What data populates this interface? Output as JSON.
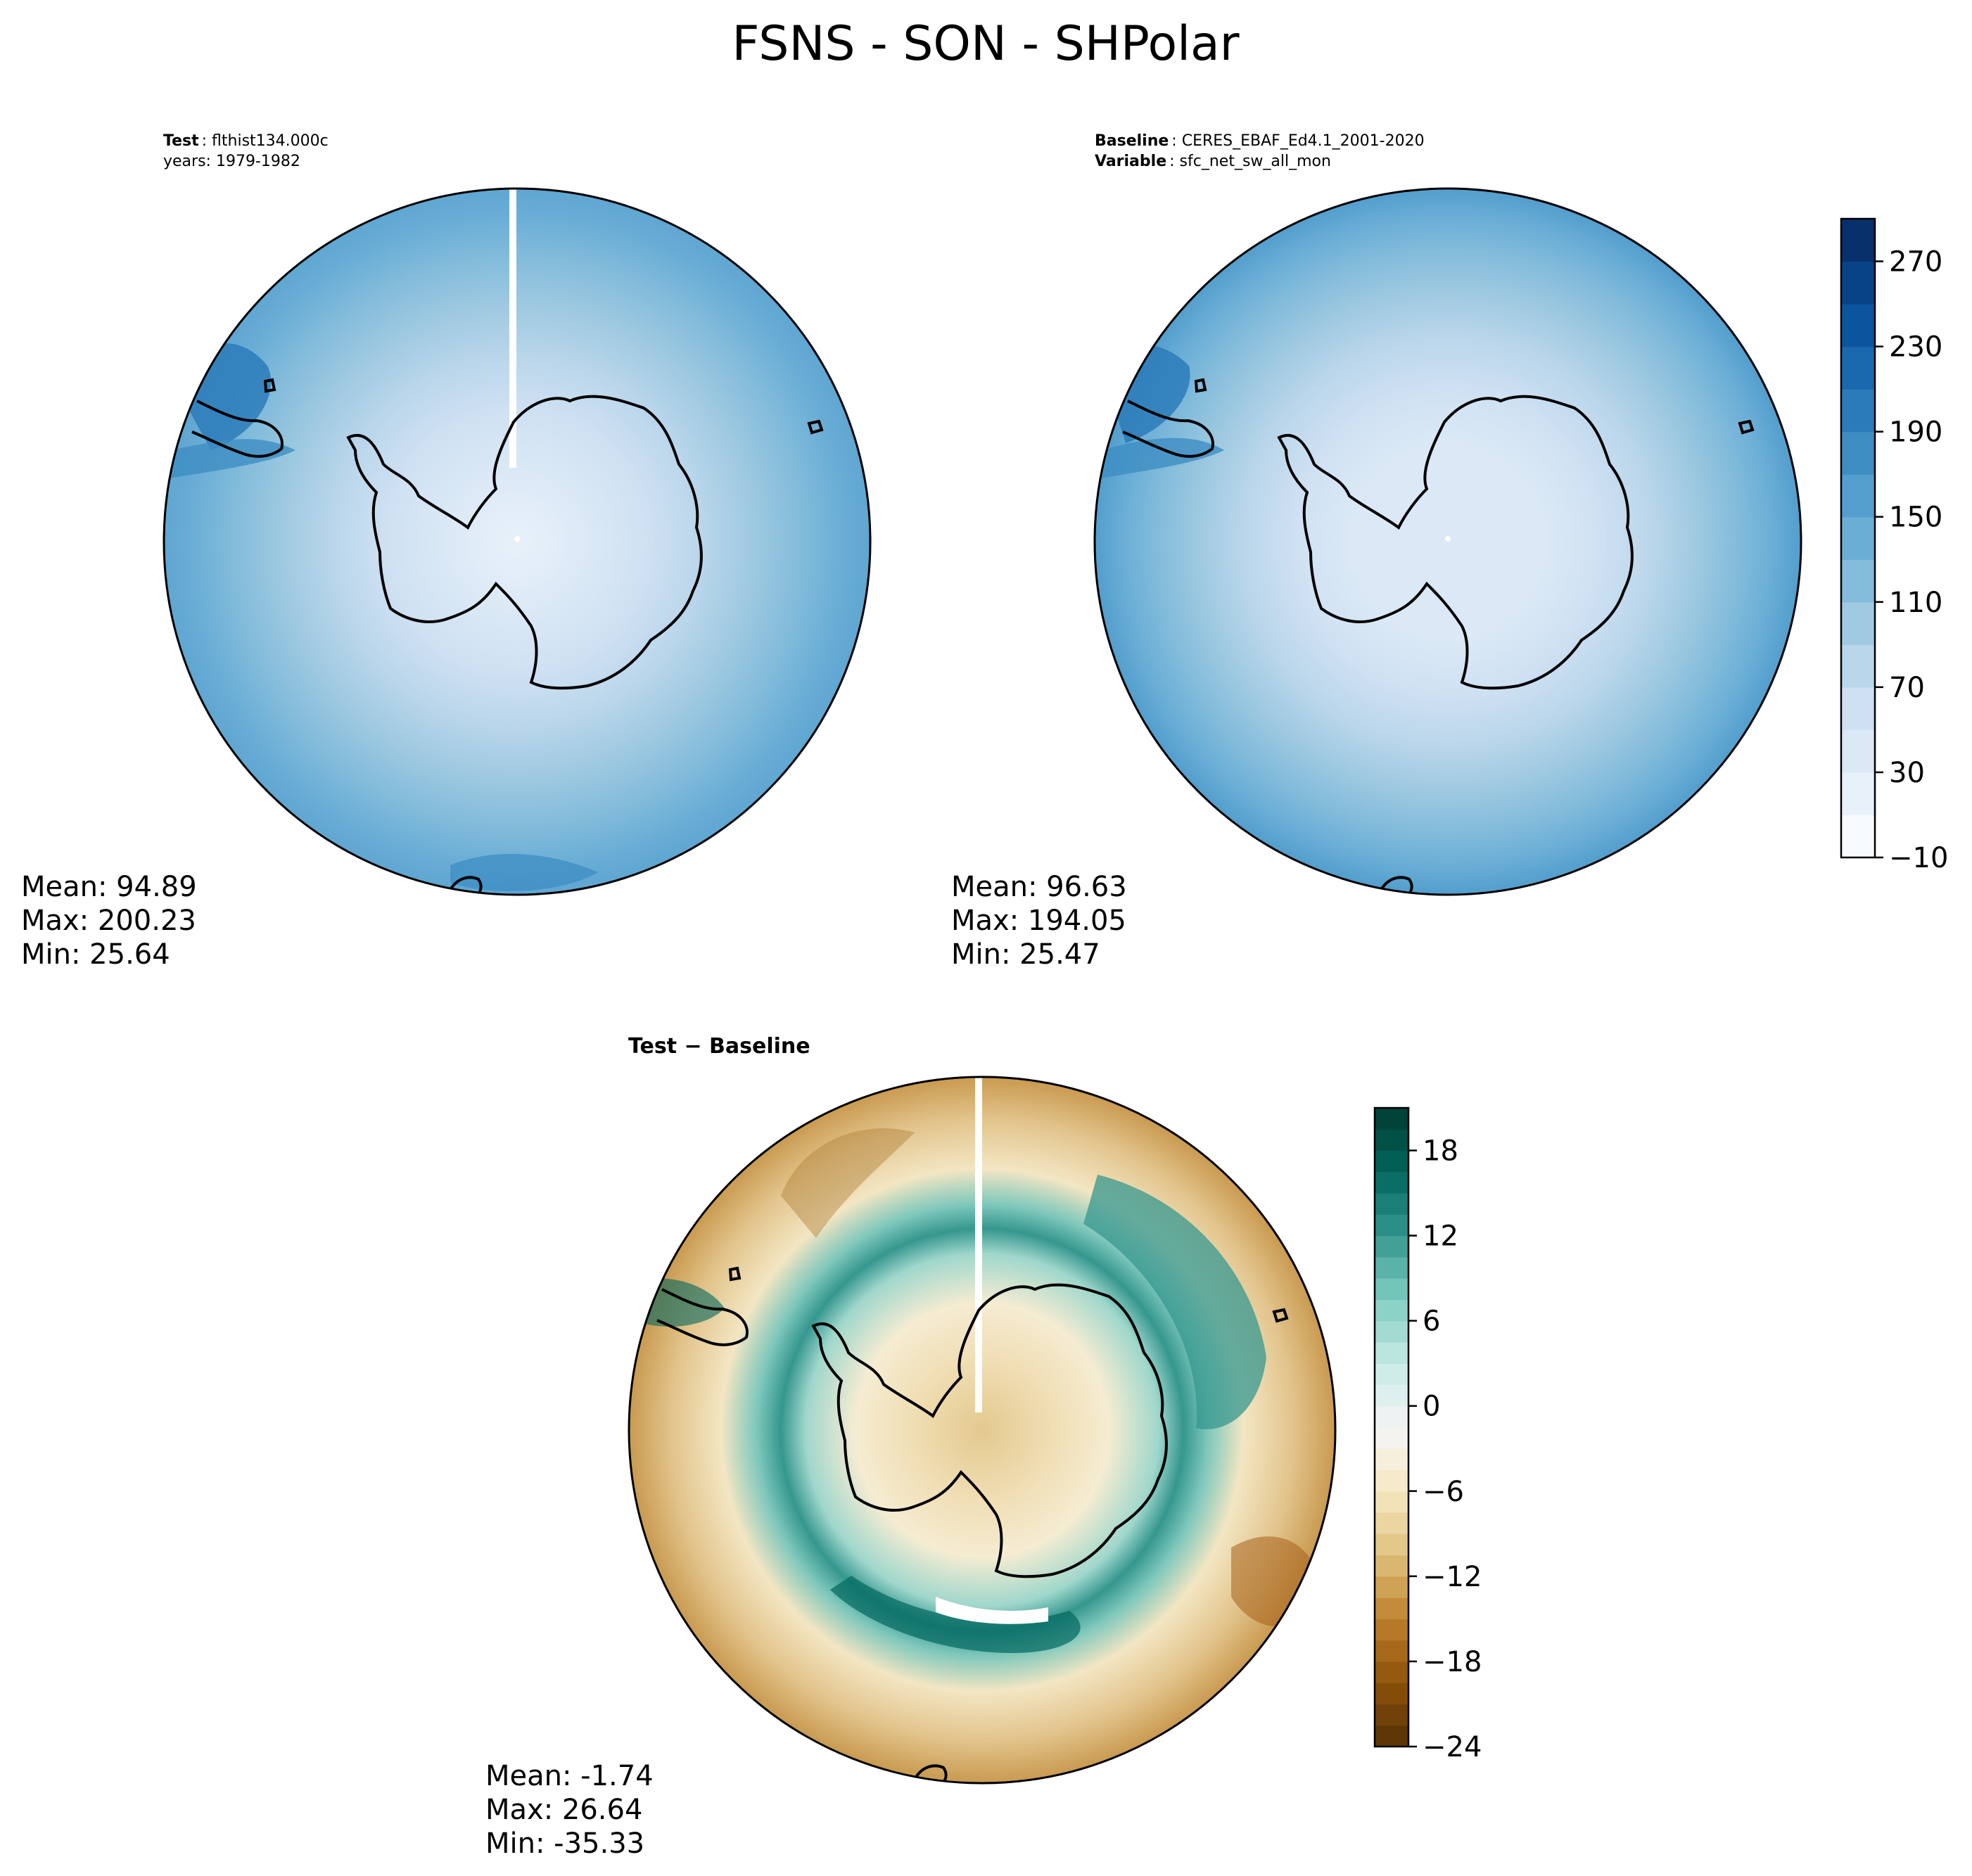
{
  "figure": {
    "title": "FSNS - SON - SHPolar"
  },
  "panels": [
    {
      "header_lines": [
        {
          "bold": "Test",
          "text": "flthist134.000c"
        },
        {
          "bold": "",
          "text": "years: 1979-1982"
        }
      ],
      "stats": [
        "Mean: 94.89",
        "Max: 200.23",
        "Min: 25.64"
      ],
      "field": "abs_test"
    },
    {
      "header_lines": [
        {
          "bold": "Baseline",
          "text": "CERES_EBAF_Ed4.1_2001-2020"
        },
        {
          "bold": "Variable",
          "text": "sfc_net_sw_all_mon"
        }
      ],
      "stats": [
        "Mean: 96.63",
        "Max: 194.05",
        "Min: 25.47"
      ],
      "field": "abs_ref"
    },
    {
      "header_lines": [
        {
          "bold": "Test − Baseline",
          "text": ""
        }
      ],
      "stats": [
        "Mean: -1.74",
        "Max: 26.64",
        "Min: -35.33"
      ],
      "field": "diff"
    }
  ],
  "chart_data": [
    {
      "type": "heatmap",
      "title": "FSNS - SON - SHPolar",
      "projection": "south polar stereographic",
      "colorbar": {
        "colormap": "Blues",
        "levels_from": -10,
        "levels_to": 290,
        "level_step": 20,
        "tick_values": [
          -10,
          30,
          70,
          110,
          150,
          190,
          230,
          270
        ],
        "tick_labels": [
          "−10",
          "30",
          "70",
          "110",
          "150",
          "190",
          "230",
          "270"
        ],
        "colors": [
          "#f7fbff",
          "#e8f1fa",
          "#dbe9f6",
          "#cee0f2",
          "#bad6eb",
          "#a0cae1",
          "#84bcdb",
          "#6aaed6",
          "#539ecd",
          "#3d8dc3",
          "#2b7bba",
          "#1a68ad",
          "#0b559f",
          "#084387",
          "#08306b"
        ]
      },
      "maps": [
        {
          "label": "Test",
          "mean": 94.89,
          "max": 200.23,
          "min": 25.64
        },
        {
          "label": "Baseline",
          "mean": 96.63,
          "max": 194.05,
          "min": 25.47
        }
      ]
    },
    {
      "type": "heatmap",
      "title": "Test − Baseline",
      "projection": "south polar stereographic",
      "colorbar": {
        "colormap": "BrBG",
        "levels_from": -24,
        "levels_to": 21,
        "level_step": 1.5,
        "tick_values": [
          -24,
          -18,
          -12,
          -6,
          0,
          6,
          12,
          18
        ],
        "tick_labels": [
          "−24",
          "−18",
          "−12",
          "−6",
          "0",
          "6",
          "12",
          "18"
        ]
      },
      "maps": [
        {
          "label": "Test − Baseline",
          "mean": -1.74,
          "max": 26.64,
          "min": -35.33
        }
      ]
    }
  ]
}
